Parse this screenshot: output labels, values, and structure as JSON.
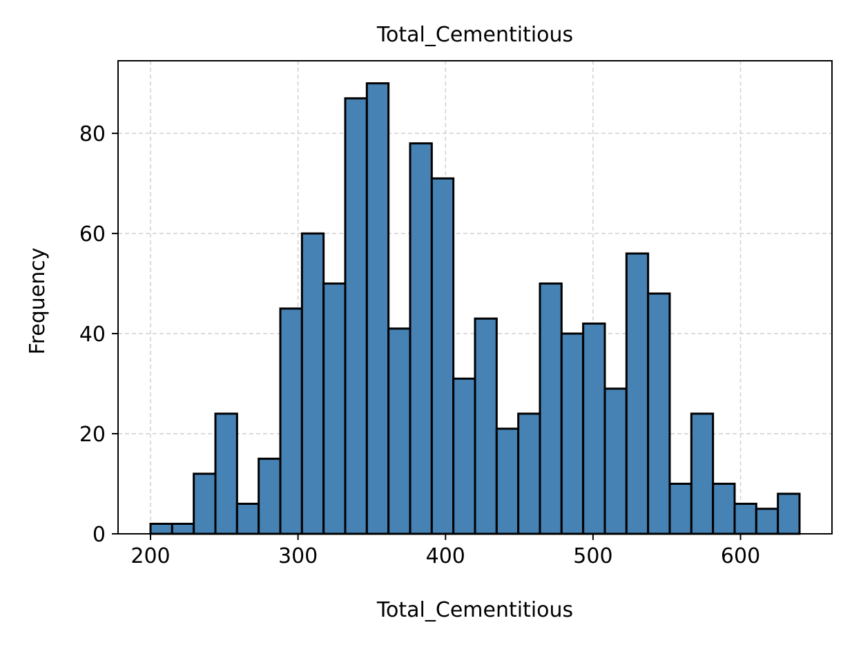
{
  "chart_data": {
    "type": "bar",
    "title": "Total_Cementitious",
    "xlabel": "Total_Cementitious",
    "ylabel": "Frequency",
    "bin_edges": [
      200,
      214.67,
      229.33,
      244,
      258.67,
      273.33,
      288,
      302.67,
      317.33,
      332,
      346.67,
      361.33,
      376,
      390.67,
      405.33,
      420,
      434.67,
      449.33,
      464,
      478.67,
      493.33,
      508,
      522.67,
      537.33,
      552,
      566.67,
      581.33,
      596,
      610.67,
      625.33,
      640
    ],
    "values": [
      2,
      2,
      12,
      24,
      6,
      15,
      45,
      60,
      50,
      87,
      90,
      41,
      78,
      71,
      31,
      43,
      21,
      24,
      50,
      40,
      42,
      29,
      56,
      48,
      10,
      24,
      10,
      6,
      5,
      8
    ],
    "xlim": [
      178,
      662
    ],
    "ylim": [
      0,
      94.5
    ],
    "xticks": [
      "200",
      "300",
      "400",
      "500",
      "600"
    ],
    "yticks": [
      "0",
      "20",
      "40",
      "60",
      "80"
    ],
    "grid": true,
    "bar_color": "#4682b4",
    "edge_color": "#000000",
    "grid_color": "#d3d3d3"
  }
}
